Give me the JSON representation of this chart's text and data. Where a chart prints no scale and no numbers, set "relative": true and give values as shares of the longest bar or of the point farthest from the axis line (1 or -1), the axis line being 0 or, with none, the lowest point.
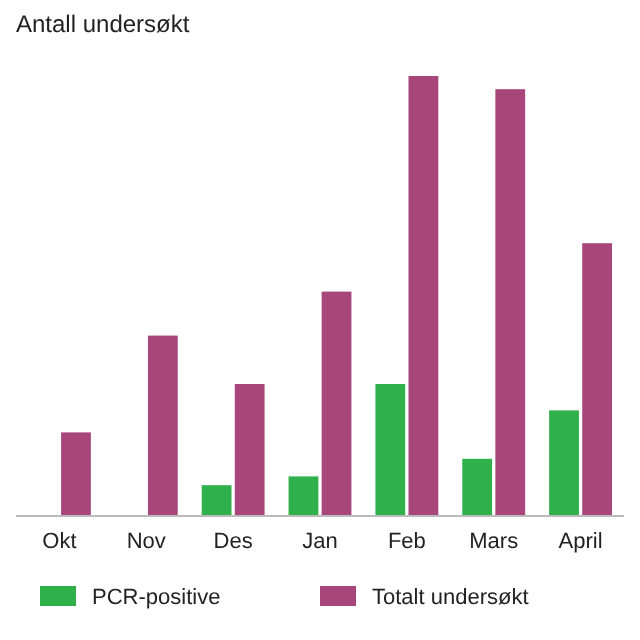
{
  "chart_data": {
    "type": "bar",
    "title": "Antall undersøkt",
    "relative": true,
    "categories": [
      "Okt",
      "Nov",
      "Des",
      "Jan",
      "Feb",
      "Mars",
      "April"
    ],
    "series": [
      {
        "name": "PCR-positive",
        "color": "#2fb04a",
        "values": [
          0,
          0,
          0.07,
          0.09,
          0.3,
          0.13,
          0.24
        ]
      },
      {
        "name": "Totalt undersøkt",
        "color": "#a8467c",
        "values": [
          0.19,
          0.41,
          0.3,
          0.51,
          1,
          0.97,
          0.62
        ]
      }
    ],
    "legend": "bottom"
  }
}
